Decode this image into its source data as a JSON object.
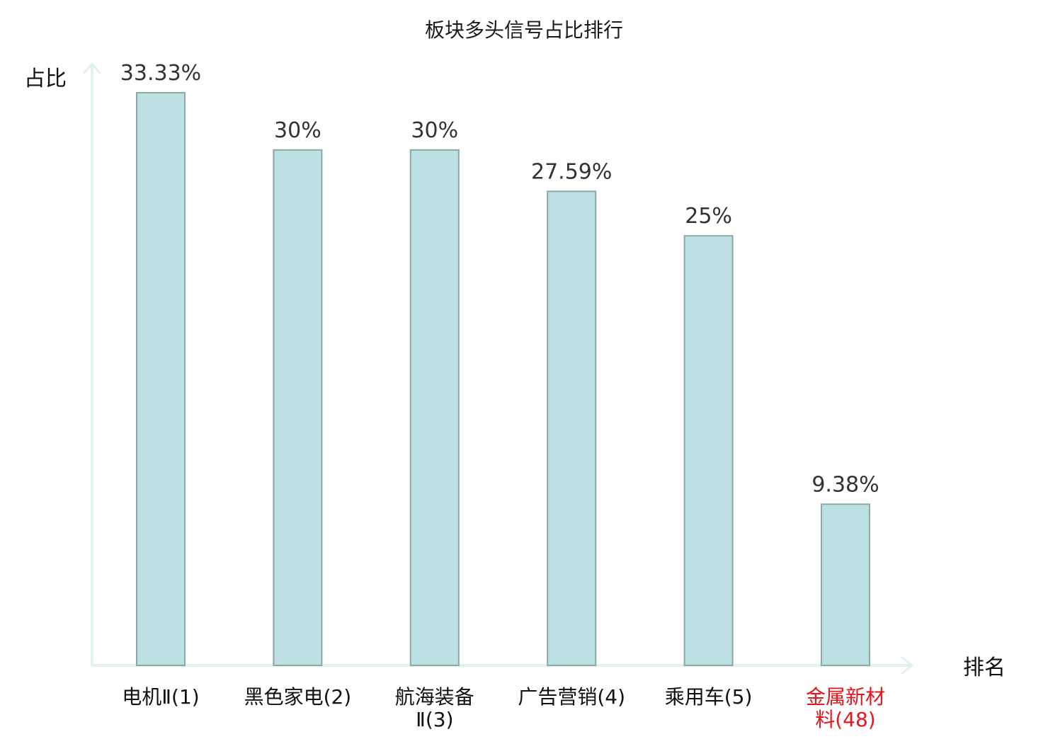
{
  "chart_data": {
    "type": "bar",
    "title": "板块多头信号占比排行",
    "ylabel": "占比",
    "xlabel": "排名",
    "categories": [
      [
        "电机Ⅱ(1)"
      ],
      [
        "黑色家电(2)"
      ],
      [
        "航海装备",
        "Ⅱ(3)"
      ],
      [
        "广告营销(4)"
      ],
      [
        "乘用车(5)"
      ],
      [
        "金属新材",
        "料(48)"
      ]
    ],
    "values": [
      33.33,
      30,
      30,
      27.59,
      25,
      9.38
    ],
    "value_labels": [
      "33.33%",
      "30%",
      "30%",
      "27.59%",
      "25%",
      "9.38%"
    ],
    "highlight_index": 5,
    "ylim": [
      0,
      35
    ],
    "grid": false,
    "colors": {
      "bar_fill": "#bde0e2",
      "bar_stroke": "#8aa8aa",
      "axis": "#dff2ee",
      "label": "#111111",
      "highlight_label": "#e8141c"
    }
  }
}
